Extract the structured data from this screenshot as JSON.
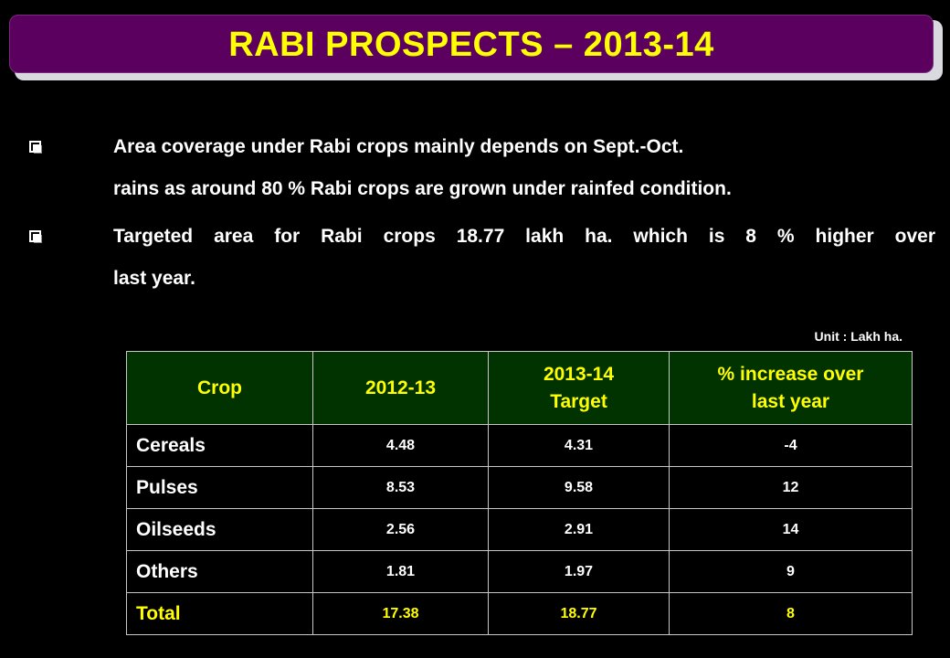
{
  "title": "RABI PROSPECTS – 2013-14",
  "bullets": [
    {
      "line1": "Area coverage under Rabi crops mainly depends on  Sept.-Oct.",
      "line2": "rains as around 80 % Rabi crops are grown under rainfed condition."
    },
    {
      "line1": "Targeted area for Rabi crops 18.77 lakh ha. which is 8 % higher over",
      "line2": "last year."
    }
  ],
  "unit": "Unit : Lakh ha.",
  "table": {
    "headers": {
      "crop": "Crop",
      "y2012": "2012-13",
      "y2013_line1": "2013-14",
      "y2013_line2": "Target",
      "pct_line1": "% increase over",
      "pct_line2": "last year"
    },
    "rows": [
      {
        "crop": "Cereals",
        "y2012": "4.48",
        "y2013": "4.31",
        "pct": "-4"
      },
      {
        "crop": "Pulses",
        "y2012": "8.53",
        "y2013": "9.58",
        "pct": "12"
      },
      {
        "crop": "Oilseeds",
        "y2012": "2.56",
        "y2013": "2.91",
        "pct": "14"
      },
      {
        "crop": "Others",
        "y2012": "1.81",
        "y2013": "1.97",
        "pct": "9"
      },
      {
        "crop": "Total",
        "y2012": "17.38",
        "y2013": "18.77",
        "pct": "8"
      }
    ]
  },
  "colors": {
    "background": "#000000",
    "title_bar": "#5c0060",
    "title_text": "#ffff00",
    "header_bg": "#003300",
    "header_text": "#ffff00",
    "total_text": "#ffff00"
  }
}
